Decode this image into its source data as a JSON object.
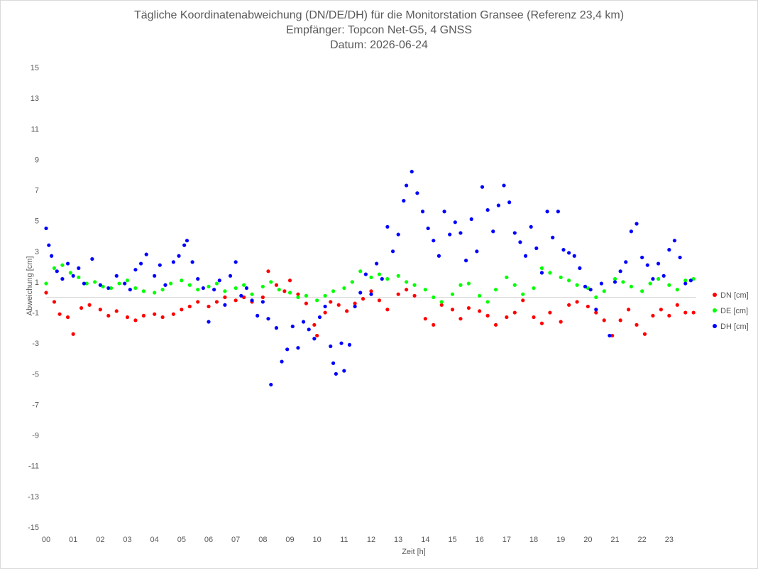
{
  "chart_data": {
    "type": "scatter",
    "title": "Tägliche Koordinatenabweichung (DN/DE/DH) für die Monitorstation Gransee (Referenz 23,4 km)",
    "subtitle": "Empfänger: Topcon Net-G5, 4 GNSS",
    "date_line": "Datum: 2026-06-24",
    "xlabel": "Zeit [h]",
    "ylabel": "Abweichung [cm]",
    "xlim": [
      0,
      24
    ],
    "ylim": [
      -15,
      15
    ],
    "x_tick_values": [
      0,
      1,
      2,
      3,
      4,
      5,
      6,
      7,
      8,
      9,
      10,
      11,
      12,
      13,
      14,
      15,
      16,
      17,
      18,
      19,
      20,
      21,
      22,
      23
    ],
    "x_tick_labels": [
      "00",
      "01",
      "02",
      "03",
      "04",
      "05",
      "06",
      "07",
      "08",
      "09",
      "10",
      "11",
      "12",
      "13",
      "14",
      "15",
      "16",
      "17",
      "18",
      "19",
      "20",
      "21",
      "22",
      "23"
    ],
    "y_ticks": [
      15,
      13,
      11,
      9,
      7,
      5,
      3,
      1,
      -1,
      -3,
      -5,
      -7,
      -9,
      -11,
      -13,
      -15
    ],
    "grid": false,
    "legend_position": "right",
    "series": [
      {
        "name": "DN [cm]",
        "color": "#ff0000",
        "points": [
          [
            0.0,
            0.3
          ],
          [
            0.3,
            -0.3
          ],
          [
            0.5,
            -1.1
          ],
          [
            0.8,
            -1.3
          ],
          [
            1.0,
            -2.4
          ],
          [
            1.3,
            -0.7
          ],
          [
            1.6,
            -0.5
          ],
          [
            2.0,
            -0.8
          ],
          [
            2.3,
            -1.2
          ],
          [
            2.6,
            -0.9
          ],
          [
            3.0,
            -1.3
          ],
          [
            3.3,
            -1.5
          ],
          [
            3.6,
            -1.2
          ],
          [
            4.0,
            -1.1
          ],
          [
            4.3,
            -1.3
          ],
          [
            4.7,
            -1.1
          ],
          [
            5.0,
            -0.8
          ],
          [
            5.3,
            -0.6
          ],
          [
            5.6,
            -0.3
          ],
          [
            6.0,
            -0.6
          ],
          [
            6.3,
            -0.3
          ],
          [
            6.6,
            0.0
          ],
          [
            7.0,
            -0.2
          ],
          [
            7.3,
            0.0
          ],
          [
            7.6,
            -0.3
          ],
          [
            8.0,
            0.0
          ],
          [
            8.2,
            1.7
          ],
          [
            8.5,
            0.8
          ],
          [
            8.8,
            0.4
          ],
          [
            9.0,
            1.1
          ],
          [
            9.3,
            0.2
          ],
          [
            9.6,
            -0.4
          ],
          [
            9.9,
            -1.8
          ],
          [
            10.0,
            -2.5
          ],
          [
            10.3,
            -1.0
          ],
          [
            10.5,
            -0.3
          ],
          [
            10.8,
            -0.5
          ],
          [
            11.1,
            -0.9
          ],
          [
            11.4,
            -0.4
          ],
          [
            11.7,
            -0.1
          ],
          [
            12.0,
            0.4
          ],
          [
            12.3,
            -0.2
          ],
          [
            12.6,
            -0.8
          ],
          [
            13.0,
            0.2
          ],
          [
            13.3,
            0.5
          ],
          [
            13.6,
            0.1
          ],
          [
            14.0,
            -1.4
          ],
          [
            14.3,
            -1.8
          ],
          [
            14.6,
            -0.5
          ],
          [
            15.0,
            -0.8
          ],
          [
            15.3,
            -1.4
          ],
          [
            15.6,
            -0.7
          ],
          [
            16.0,
            -0.9
          ],
          [
            16.3,
            -1.2
          ],
          [
            16.6,
            -1.8
          ],
          [
            17.0,
            -1.3
          ],
          [
            17.3,
            -1.0
          ],
          [
            17.6,
            -0.2
          ],
          [
            18.0,
            -1.3
          ],
          [
            18.3,
            -1.7
          ],
          [
            18.6,
            -1.0
          ],
          [
            19.0,
            -1.6
          ],
          [
            19.3,
            -0.5
          ],
          [
            19.6,
            -0.3
          ],
          [
            20.0,
            -0.6
          ],
          [
            20.3,
            -1.0
          ],
          [
            20.6,
            -1.5
          ],
          [
            20.9,
            -2.5
          ],
          [
            21.2,
            -1.5
          ],
          [
            21.5,
            -0.8
          ],
          [
            21.8,
            -1.8
          ],
          [
            22.1,
            -2.4
          ],
          [
            22.4,
            -1.2
          ],
          [
            22.7,
            -0.8
          ],
          [
            23.0,
            -1.2
          ],
          [
            23.3,
            -0.5
          ],
          [
            23.6,
            -1.0
          ],
          [
            23.9,
            -1.0
          ]
        ]
      },
      {
        "name": "DE [cm]",
        "color": "#00ff00",
        "points": [
          [
            0.0,
            0.9
          ],
          [
            0.3,
            1.9
          ],
          [
            0.6,
            2.1
          ],
          [
            0.9,
            1.6
          ],
          [
            1.2,
            1.3
          ],
          [
            1.5,
            0.9
          ],
          [
            1.8,
            1.0
          ],
          [
            2.1,
            0.7
          ],
          [
            2.4,
            0.6
          ],
          [
            2.7,
            0.9
          ],
          [
            3.0,
            1.1
          ],
          [
            3.3,
            0.6
          ],
          [
            3.6,
            0.4
          ],
          [
            4.0,
            0.3
          ],
          [
            4.3,
            0.5
          ],
          [
            4.6,
            0.9
          ],
          [
            5.0,
            1.1
          ],
          [
            5.3,
            0.8
          ],
          [
            5.6,
            0.5
          ],
          [
            6.0,
            0.7
          ],
          [
            6.3,
            0.9
          ],
          [
            6.6,
            0.4
          ],
          [
            7.0,
            0.6
          ],
          [
            7.3,
            0.8
          ],
          [
            7.6,
            0.2
          ],
          [
            8.0,
            0.7
          ],
          [
            8.3,
            1.0
          ],
          [
            8.6,
            0.5
          ],
          [
            9.0,
            0.3
          ],
          [
            9.3,
            0.0
          ],
          [
            9.6,
            0.1
          ],
          [
            10.0,
            -0.2
          ],
          [
            10.3,
            0.1
          ],
          [
            10.6,
            0.4
          ],
          [
            11.0,
            0.6
          ],
          [
            11.3,
            1.0
          ],
          [
            11.6,
            1.7
          ],
          [
            12.0,
            1.3
          ],
          [
            12.3,
            1.5
          ],
          [
            12.6,
            1.2
          ],
          [
            13.0,
            1.4
          ],
          [
            13.3,
            1.0
          ],
          [
            13.6,
            0.8
          ],
          [
            14.0,
            0.5
          ],
          [
            14.3,
            0.0
          ],
          [
            14.6,
            -0.3
          ],
          [
            15.0,
            0.2
          ],
          [
            15.3,
            0.8
          ],
          [
            15.6,
            0.9
          ],
          [
            16.0,
            0.1
          ],
          [
            16.3,
            -0.3
          ],
          [
            16.6,
            0.5
          ],
          [
            17.0,
            1.3
          ],
          [
            17.3,
            0.8
          ],
          [
            17.6,
            0.2
          ],
          [
            18.0,
            0.6
          ],
          [
            18.3,
            1.9
          ],
          [
            18.6,
            1.6
          ],
          [
            19.0,
            1.3
          ],
          [
            19.3,
            1.1
          ],
          [
            19.6,
            0.8
          ],
          [
            20.0,
            0.6
          ],
          [
            20.3,
            0.0
          ],
          [
            20.6,
            0.4
          ],
          [
            21.0,
            1.2
          ],
          [
            21.3,
            1.0
          ],
          [
            21.6,
            0.7
          ],
          [
            22.0,
            0.4
          ],
          [
            22.3,
            0.9
          ],
          [
            22.6,
            1.2
          ],
          [
            23.0,
            0.8
          ],
          [
            23.3,
            0.5
          ],
          [
            23.6,
            1.1
          ],
          [
            23.9,
            1.2
          ]
        ]
      },
      {
        "name": "DH [cm]",
        "color": "#0000ff",
        "points": [
          [
            0.0,
            4.5
          ],
          [
            0.1,
            3.4
          ],
          [
            0.2,
            2.7
          ],
          [
            0.4,
            1.7
          ],
          [
            0.6,
            1.2
          ],
          [
            0.8,
            2.2
          ],
          [
            1.0,
            1.4
          ],
          [
            1.2,
            1.9
          ],
          [
            1.4,
            0.9
          ],
          [
            1.7,
            2.5
          ],
          [
            2.0,
            0.8
          ],
          [
            2.3,
            0.6
          ],
          [
            2.6,
            1.4
          ],
          [
            2.9,
            0.9
          ],
          [
            3.1,
            0.5
          ],
          [
            3.3,
            1.8
          ],
          [
            3.5,
            2.2
          ],
          [
            3.7,
            2.8
          ],
          [
            4.0,
            1.4
          ],
          [
            4.2,
            2.1
          ],
          [
            4.4,
            0.8
          ],
          [
            4.7,
            2.3
          ],
          [
            4.9,
            2.7
          ],
          [
            5.1,
            3.4
          ],
          [
            5.2,
            3.7
          ],
          [
            5.4,
            2.3
          ],
          [
            5.6,
            1.2
          ],
          [
            5.8,
            0.6
          ],
          [
            6.0,
            -1.6
          ],
          [
            6.2,
            0.5
          ],
          [
            6.4,
            1.1
          ],
          [
            6.6,
            -0.5
          ],
          [
            6.8,
            1.4
          ],
          [
            7.0,
            2.3
          ],
          [
            7.2,
            0.1
          ],
          [
            7.4,
            0.6
          ],
          [
            7.6,
            -0.2
          ],
          [
            7.8,
            -1.2
          ],
          [
            8.0,
            -0.3
          ],
          [
            8.2,
            -1.4
          ],
          [
            8.3,
            -5.7
          ],
          [
            8.5,
            -2.0
          ],
          [
            8.7,
            -4.2
          ],
          [
            8.9,
            -3.4
          ],
          [
            9.1,
            -1.9
          ],
          [
            9.3,
            -3.3
          ],
          [
            9.5,
            -1.6
          ],
          [
            9.7,
            -2.1
          ],
          [
            9.9,
            -2.7
          ],
          [
            10.1,
            -1.3
          ],
          [
            10.3,
            -0.6
          ],
          [
            10.5,
            -3.2
          ],
          [
            10.6,
            -4.3
          ],
          [
            10.7,
            -5.0
          ],
          [
            10.9,
            -3.0
          ],
          [
            11.0,
            -4.8
          ],
          [
            11.2,
            -3.1
          ],
          [
            11.4,
            -0.6
          ],
          [
            11.6,
            0.3
          ],
          [
            11.8,
            1.5
          ],
          [
            12.0,
            0.2
          ],
          [
            12.2,
            2.2
          ],
          [
            12.4,
            1.2
          ],
          [
            12.6,
            4.6
          ],
          [
            12.8,
            3.0
          ],
          [
            13.0,
            4.1
          ],
          [
            13.2,
            6.3
          ],
          [
            13.3,
            7.3
          ],
          [
            13.5,
            8.2
          ],
          [
            13.7,
            6.8
          ],
          [
            13.9,
            5.6
          ],
          [
            14.1,
            4.5
          ],
          [
            14.3,
            3.7
          ],
          [
            14.5,
            2.7
          ],
          [
            14.7,
            5.6
          ],
          [
            14.9,
            4.1
          ],
          [
            15.1,
            4.9
          ],
          [
            15.3,
            4.2
          ],
          [
            15.5,
            2.4
          ],
          [
            15.7,
            5.1
          ],
          [
            15.9,
            3.0
          ],
          [
            16.1,
            7.2
          ],
          [
            16.3,
            5.7
          ],
          [
            16.5,
            4.3
          ],
          [
            16.7,
            6.0
          ],
          [
            16.9,
            7.3
          ],
          [
            17.1,
            6.2
          ],
          [
            17.3,
            4.2
          ],
          [
            17.5,
            3.6
          ],
          [
            17.7,
            2.7
          ],
          [
            17.9,
            4.6
          ],
          [
            18.1,
            3.2
          ],
          [
            18.3,
            1.6
          ],
          [
            18.5,
            5.6
          ],
          [
            18.7,
            3.9
          ],
          [
            18.9,
            5.6
          ],
          [
            19.1,
            3.1
          ],
          [
            19.3,
            2.9
          ],
          [
            19.5,
            2.7
          ],
          [
            19.7,
            1.9
          ],
          [
            19.9,
            0.7
          ],
          [
            20.1,
            0.5
          ],
          [
            20.3,
            -0.8
          ],
          [
            20.5,
            0.9
          ],
          [
            20.8,
            -2.5
          ],
          [
            21.0,
            1.0
          ],
          [
            21.2,
            1.7
          ],
          [
            21.4,
            2.3
          ],
          [
            21.6,
            4.3
          ],
          [
            21.8,
            4.8
          ],
          [
            22.0,
            2.6
          ],
          [
            22.2,
            2.1
          ],
          [
            22.4,
            1.2
          ],
          [
            22.6,
            2.2
          ],
          [
            22.8,
            1.4
          ],
          [
            23.0,
            3.1
          ],
          [
            23.2,
            3.7
          ],
          [
            23.4,
            2.6
          ],
          [
            23.6,
            0.9
          ],
          [
            23.8,
            1.1
          ]
        ]
      }
    ]
  }
}
